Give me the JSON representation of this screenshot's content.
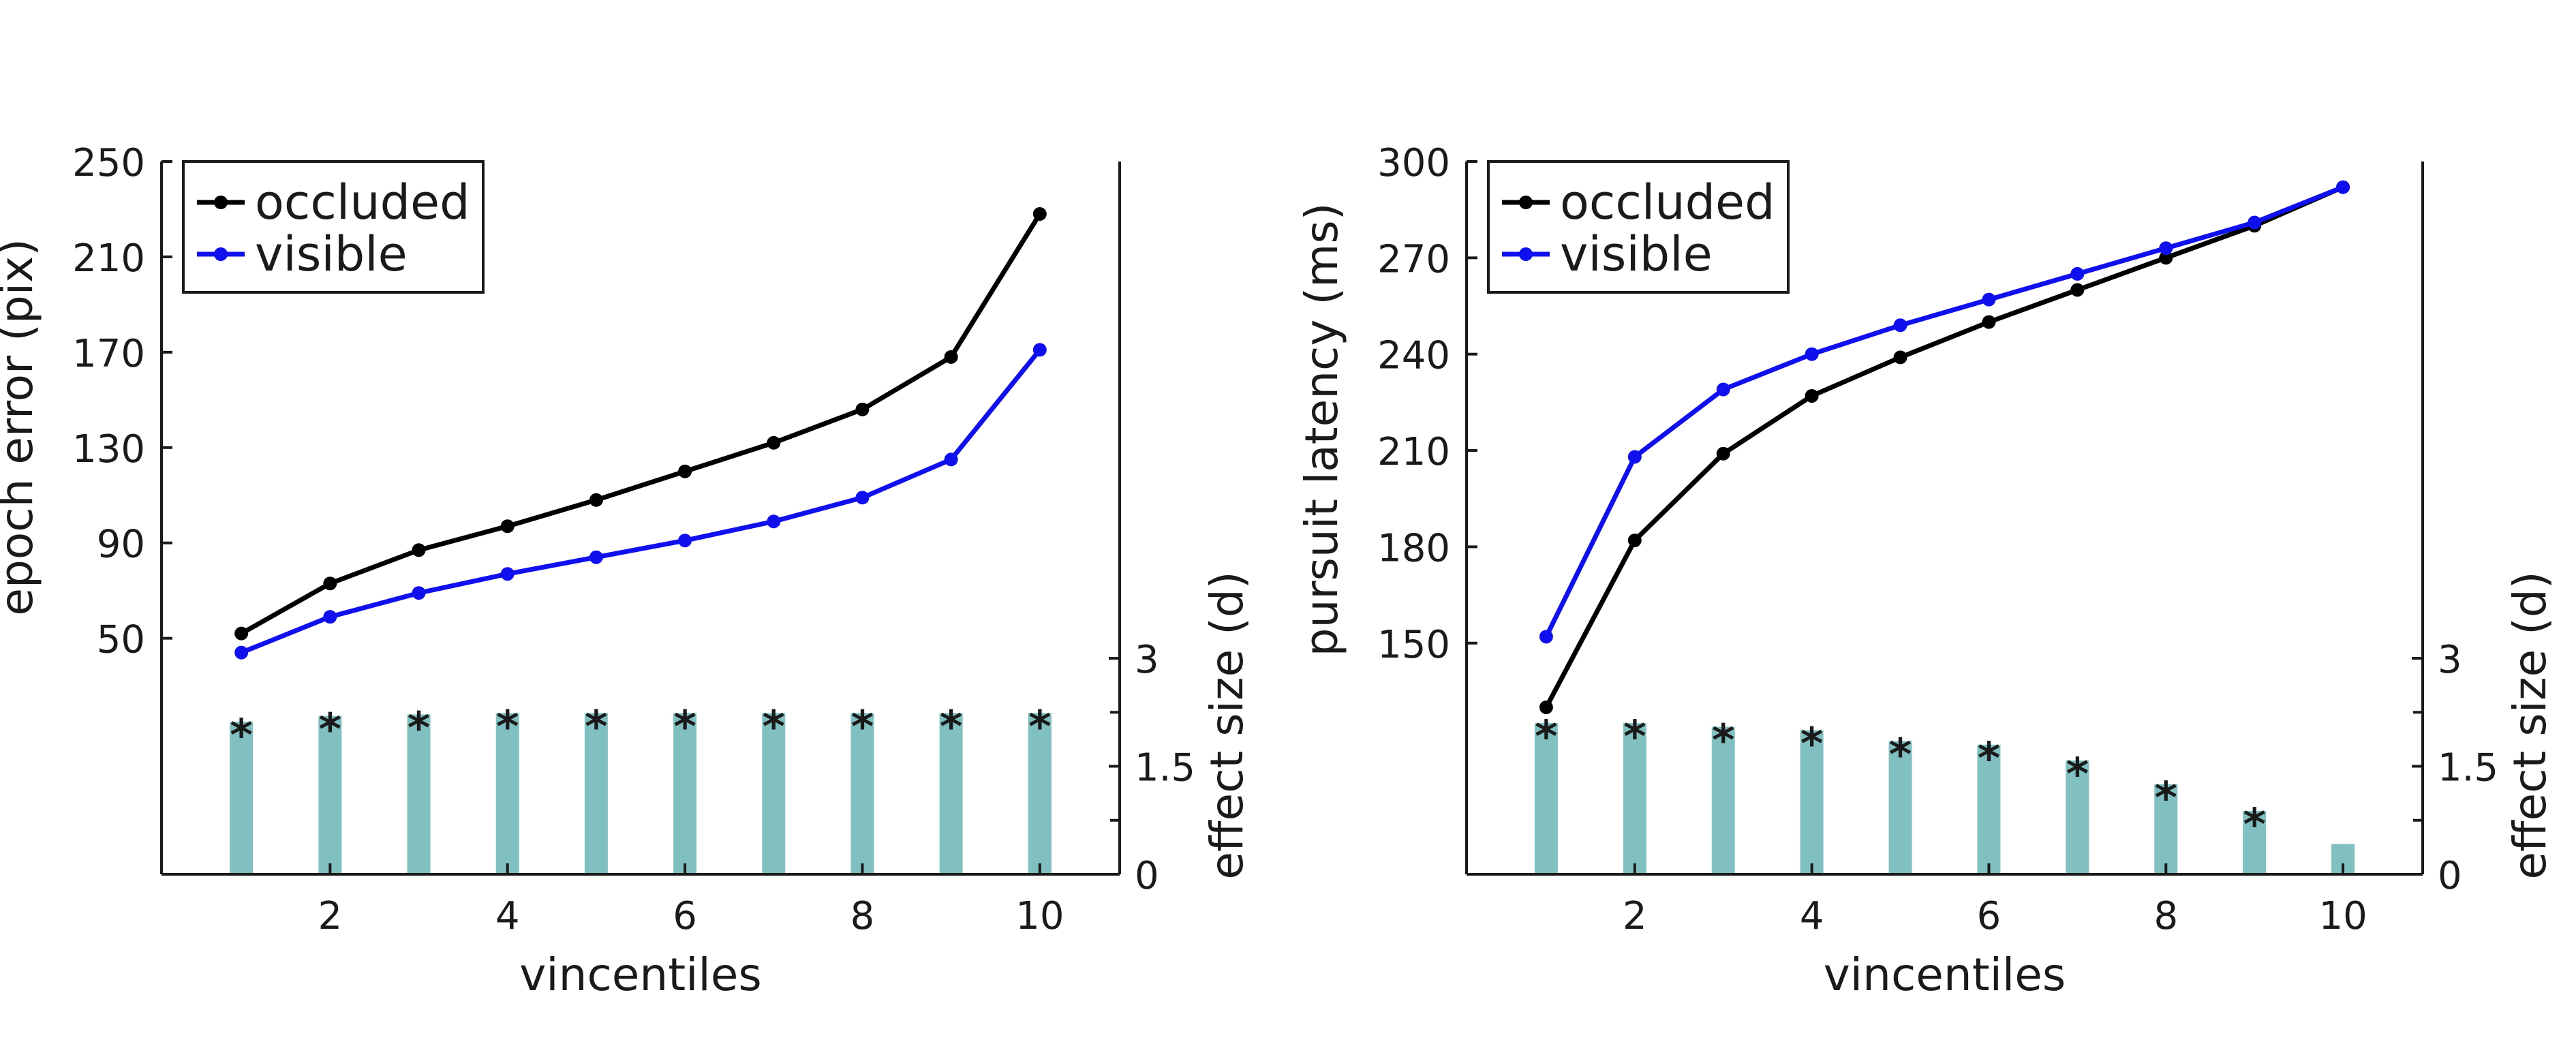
{
  "colors": {
    "occluded": "#000000",
    "visible": "#1010ee",
    "bar": "#80c0c0",
    "axis": "#1a1a1a"
  },
  "chart_data": [
    {
      "type": "line",
      "x": [
        1,
        2,
        3,
        4,
        5,
        6,
        7,
        8,
        9,
        10
      ],
      "xlabel": "vincentiles",
      "xticks": [
        "2",
        "4",
        "6",
        "8",
        "10"
      ],
      "xlim": [
        0.1,
        10.9
      ],
      "ylabel": "epoch error (pix)",
      "yticks": [
        "50",
        "90",
        "130",
        "170",
        "210",
        "250"
      ],
      "ylim": [
        -49,
        250
      ],
      "y2label": "effect size (d)",
      "y2ticks": [
        "0",
        "1.5",
        "3"
      ],
      "y2lim": [
        0,
        9.9
      ],
      "series": [
        {
          "name": "occluded",
          "values": [
            52,
            73,
            87,
            97,
            108,
            120,
            132,
            146,
            168,
            228
          ]
        },
        {
          "name": "visible",
          "values": [
            44,
            59,
            69,
            77,
            84,
            91,
            99,
            109,
            125,
            171
          ]
        }
      ],
      "effect_size": [
        2.12,
        2.2,
        2.22,
        2.24,
        2.24,
        2.24,
        2.24,
        2.24,
        2.24,
        2.24
      ],
      "significance": [
        "*",
        "*",
        "*",
        "*",
        "*",
        "*",
        "*",
        "*",
        "*",
        "*"
      ],
      "legend": {
        "location": "top-left",
        "entries": [
          "occluded",
          "visible"
        ]
      }
    },
    {
      "type": "line",
      "x": [
        1,
        2,
        3,
        4,
        5,
        6,
        7,
        8,
        9,
        10
      ],
      "xlabel": "vincentiles",
      "xticks": [
        "2",
        "4",
        "6",
        "8",
        "10"
      ],
      "xlim": [
        0.1,
        10.9
      ],
      "ylabel": "pursuit latency (ms)",
      "yticks": [
        "150",
        "180",
        "210",
        "240",
        "270",
        "300"
      ],
      "ylim": [
        78,
        300
      ],
      "y2label": "effect size (d)",
      "y2ticks": [
        "0",
        "1.5",
        "3"
      ],
      "y2lim": [
        0,
        9.9
      ],
      "series": [
        {
          "name": "occluded",
          "values": [
            130,
            182,
            209,
            227,
            239,
            250,
            260,
            270,
            280,
            292
          ]
        },
        {
          "name": "visible",
          "values": [
            152,
            208,
            229,
            240,
            249,
            257,
            265,
            273,
            281,
            292
          ]
        }
      ],
      "effect_size": [
        2.1,
        2.1,
        2.05,
        2.0,
        1.85,
        1.8,
        1.58,
        1.25,
        0.88,
        0.42
      ],
      "significance": [
        "*",
        "*",
        "*",
        "*",
        "*",
        "*",
        "*",
        "*",
        "*",
        ""
      ],
      "legend": {
        "location": "top-left",
        "entries": [
          "occluded",
          "visible"
        ]
      }
    }
  ]
}
